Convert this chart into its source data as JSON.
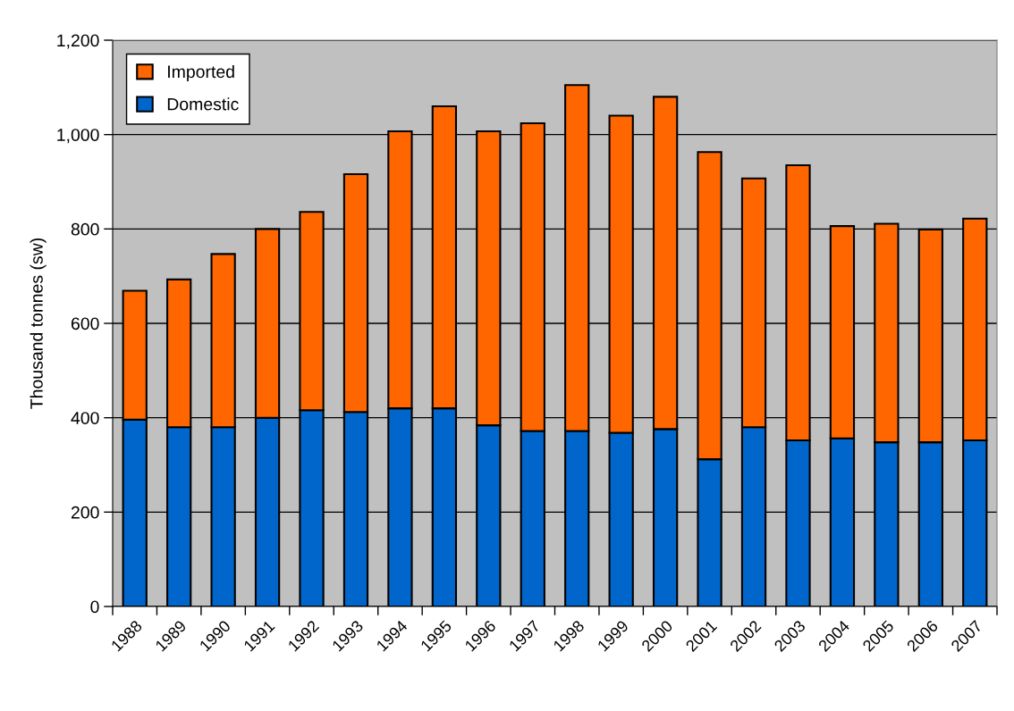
{
  "chart_data": {
    "type": "bar",
    "stacked": true,
    "ylabel": "Thousand tonnes (sw)",
    "categories": [
      "1988",
      "1989",
      "1990",
      "1991",
      "1992",
      "1993",
      "1994",
      "1995",
      "1996",
      "1997",
      "1998",
      "1999",
      "2000",
      "2001",
      "2002",
      "2003",
      "2004",
      "2005",
      "2006",
      "2007"
    ],
    "series": [
      {
        "name": "Domestic",
        "color": "#0066cc",
        "values": [
          396,
          380,
          380,
          400,
          416,
          412,
          420,
          420,
          384,
          372,
          372,
          368,
          376,
          312,
          380,
          352,
          356,
          348,
          348,
          352
        ]
      },
      {
        "name": "Imported",
        "color": "#ff6600",
        "values": [
          273,
          313,
          367,
          400,
          420,
          504,
          587,
          640,
          623,
          652,
          733,
          672,
          704,
          651,
          527,
          583,
          450,
          463,
          451,
          470
        ]
      }
    ],
    "ylim": [
      0,
      1200
    ],
    "yticks": [
      0,
      200,
      400,
      600,
      800,
      {
        "value": 1000,
        "label": "1,000"
      },
      {
        "value": 1200,
        "label": "1,200"
      }
    ],
    "grid": "y",
    "legend": "top left"
  }
}
